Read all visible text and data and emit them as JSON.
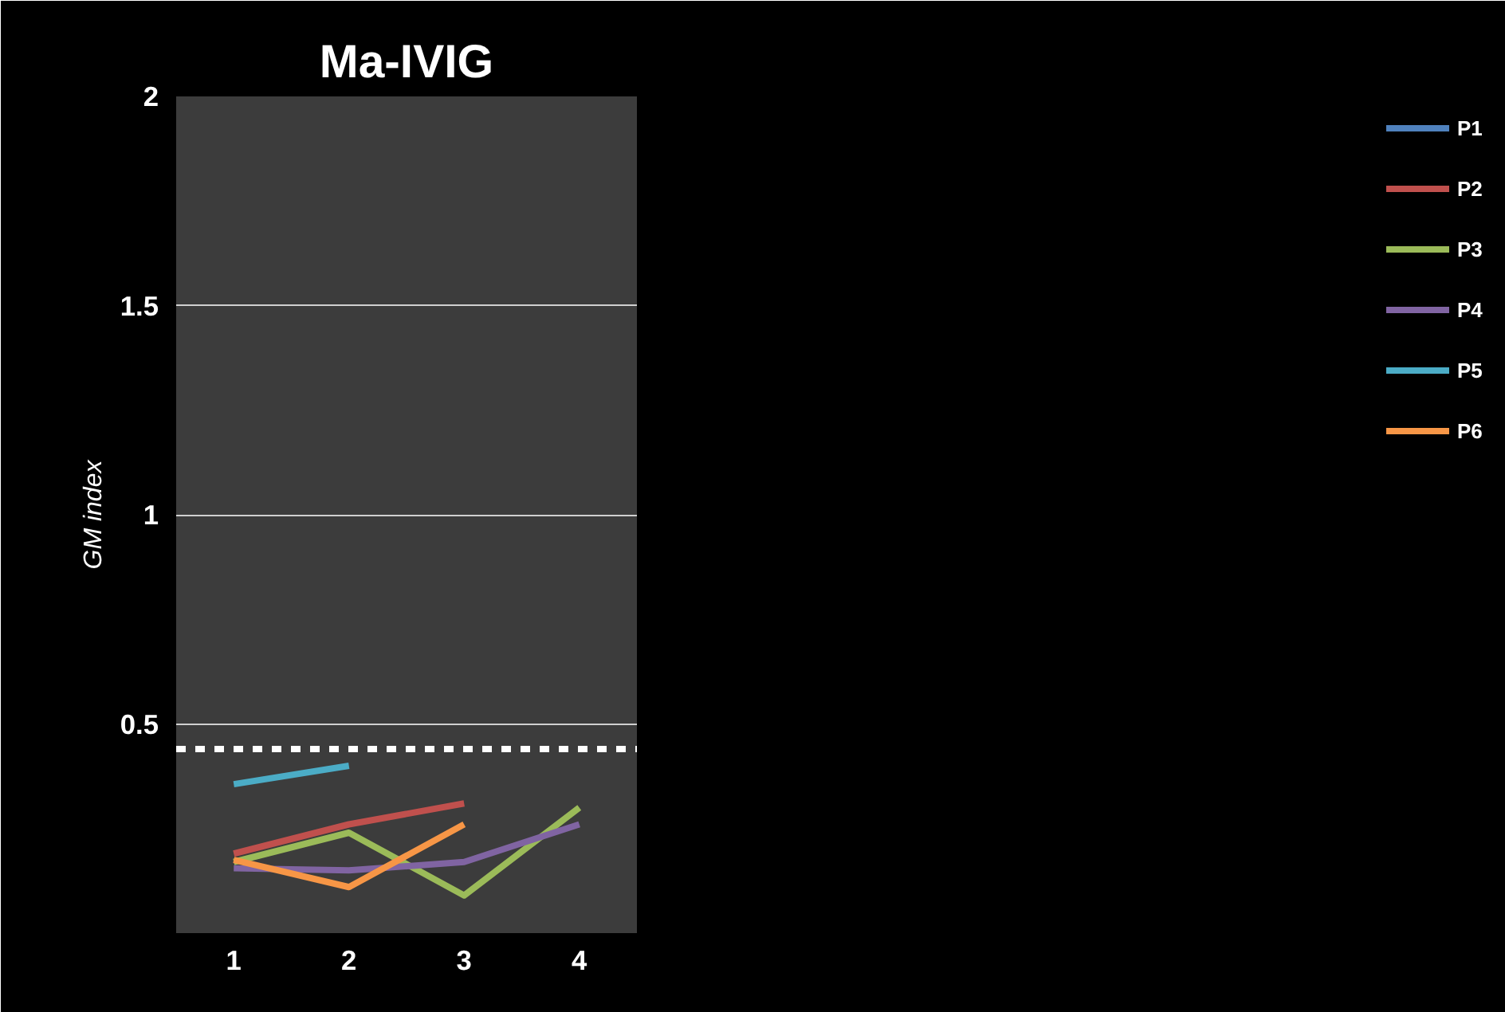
{
  "chart_data": {
    "type": "line",
    "title": "Ma-IVIG",
    "ylabel": "GM index",
    "categories": [
      "1",
      "2",
      "3",
      "4"
    ],
    "series": [
      {
        "name": "P1",
        "color": "#4f81bd",
        "values": [
          null,
          null,
          null,
          null
        ]
      },
      {
        "name": "P2",
        "color": "#c0504d",
        "values": [
          0.19,
          0.26,
          0.31,
          null
        ]
      },
      {
        "name": "P3",
        "color": "#9bbb59",
        "values": [
          0.17,
          0.24,
          0.09,
          0.3
        ]
      },
      {
        "name": "P4",
        "color": "#8064a2",
        "values": [
          0.155,
          0.15,
          0.17,
          0.26
        ]
      },
      {
        "name": "P5",
        "color": "#4bacc6",
        "values": [
          0.356,
          0.4,
          null,
          null
        ]
      },
      {
        "name": "P6",
        "color": "#f79646",
        "values": [
          0.175,
          0.11,
          0.26,
          null
        ]
      }
    ],
    "ylim": [
      0,
      2
    ],
    "yticks": [
      {
        "value": 0,
        "label": null
      },
      0.5,
      1,
      1.5,
      2
    ],
    "grid": "y",
    "legend": "right",
    "line_style": "solid",
    "ref_lines": [
      {
        "axis": "y",
        "value": 0.44,
        "color": "#ffffff",
        "line_style": "dashed"
      }
    ]
  }
}
